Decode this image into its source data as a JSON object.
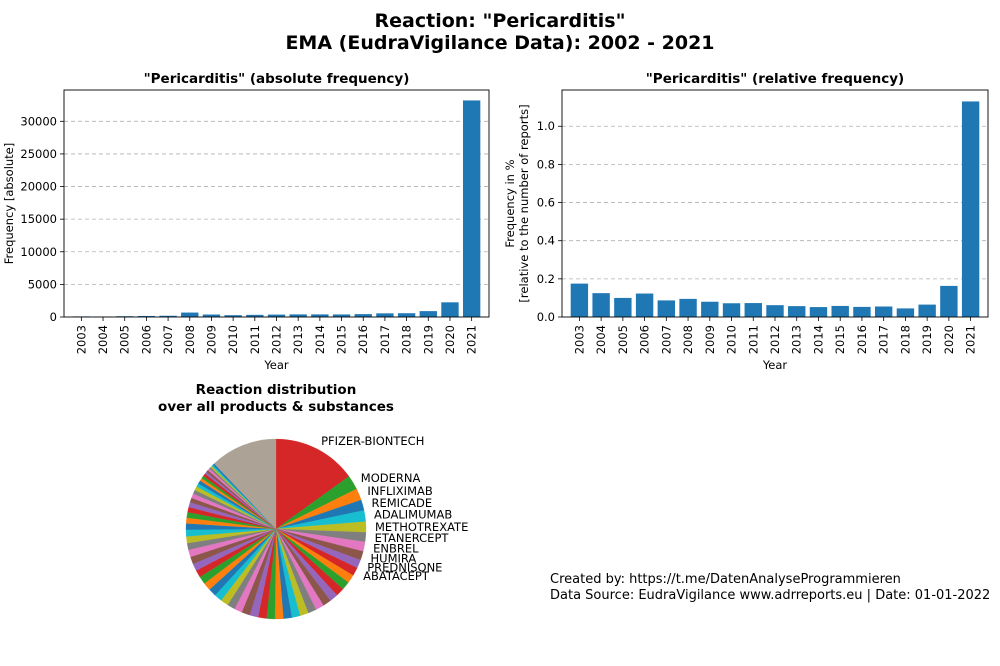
{
  "title_line1": "Reaction: \"Pericarditis\"",
  "title_line2": "EMA (EudraVigilance Data): 2002 - 2021",
  "chart_data": [
    {
      "type": "bar",
      "title": "\"Pericarditis\" (absolute frequency)",
      "xlabel": "Year",
      "ylabel": "Frequency [absolute]",
      "categories": [
        "2003",
        "2004",
        "2005",
        "2006",
        "2007",
        "2008",
        "2009",
        "2010",
        "2011",
        "2012",
        "2013",
        "2014",
        "2015",
        "2016",
        "2017",
        "2018",
        "2019",
        "2020",
        "2021"
      ],
      "values": [
        90,
        70,
        120,
        160,
        190,
        680,
        380,
        280,
        330,
        370,
        400,
        400,
        390,
        440,
        560,
        580,
        900,
        2250,
        33200
      ],
      "ylim": [
        0,
        34800
      ],
      "yticks": [
        0,
        5000,
        10000,
        15000,
        20000,
        25000,
        30000
      ],
      "color": "#1f77b4",
      "grid": "y"
    },
    {
      "type": "bar",
      "title": "\"Pericarditis\" (relative frequency)",
      "xlabel": "Year",
      "ylabel_line1": "Frequency in %",
      "ylabel_line2": "[relative to the number of reports]",
      "categories": [
        "2003",
        "2004",
        "2005",
        "2006",
        "2007",
        "2008",
        "2009",
        "2010",
        "2011",
        "2012",
        "2013",
        "2014",
        "2015",
        "2016",
        "2017",
        "2018",
        "2019",
        "2020",
        "2021"
      ],
      "values": [
        0.175,
        0.125,
        0.1,
        0.123,
        0.087,
        0.095,
        0.08,
        0.072,
        0.073,
        0.062,
        0.057,
        0.052,
        0.058,
        0.053,
        0.055,
        0.045,
        0.065,
        0.163,
        1.13
      ],
      "ylim": [
        0,
        1.19
      ],
      "yticks": [
        0.0,
        0.2,
        0.4,
        0.6,
        0.8,
        1.0
      ],
      "tick_labels": [
        "0.0",
        "0.2",
        "0.4",
        "0.6",
        "0.8",
        "1.0"
      ],
      "color": "#1f77b4",
      "grid": "y"
    },
    {
      "type": "pie",
      "title_line1": "Reaction distribution",
      "title_line2": "over all products & substances",
      "labeled_slices": [
        {
          "label": "PFIZER-BIONTECH",
          "value": 15.0,
          "color": "#d62728"
        },
        {
          "label": "MODERNA",
          "value": 2.6,
          "color": "#2ca02c"
        },
        {
          "label": "INFLIXIMAB",
          "value": 2.1,
          "color": "#ff7f0e"
        },
        {
          "label": "REMICADE",
          "value": 1.9,
          "color": "#1f77b4"
        },
        {
          "label": "ADALIMUMAB",
          "value": 2.0,
          "color": "#17becf"
        },
        {
          "label": "METHOTREXATE",
          "value": 1.9,
          "color": "#bcbd22"
        },
        {
          "label": "ETANERCEPT",
          "value": 1.7,
          "color": "#7f7f7f"
        },
        {
          "label": "ENBREL",
          "value": 1.7,
          "color": "#e377c2"
        },
        {
          "label": "HUMIRA",
          "value": 1.6,
          "color": "#8c564b"
        },
        {
          "label": "PREDNISONE",
          "value": 1.5,
          "color": "#9467bd"
        },
        {
          "label": "ABATACEPT",
          "value": 1.5,
          "color": "#d62728"
        }
      ],
      "unlabeled_slices": [
        1.5,
        1.5,
        1.5,
        1.5,
        1.5,
        1.5,
        1.5,
        1.5,
        1.5,
        1.5,
        1.5,
        1.5,
        1.5,
        1.5,
        1.5,
        1.4,
        1.4,
        1.4,
        1.4,
        1.4,
        1.4,
        1.4,
        1.3,
        1.3,
        1.3,
        1.3,
        1.2,
        1.2,
        1.2,
        1.1,
        1.0,
        1.0,
        0.9,
        0.9,
        0.8,
        0.8,
        0.7,
        0.7,
        0.6,
        0.6,
        0.5,
        0.5,
        0.5,
        0.4,
        0.4,
        0.4,
        0.3,
        0.3,
        0.3,
        0.3
      ],
      "remainder_value": 12.0,
      "remainder_color": "#aca396",
      "palette": [
        "#1f77b4",
        "#ff7f0e",
        "#2ca02c",
        "#d62728",
        "#9467bd",
        "#8c564b",
        "#e377c2",
        "#7f7f7f",
        "#bcbd22",
        "#17becf"
      ]
    }
  ],
  "credit_line1": "Created by: https://t.me/DatenAnalyseProgrammieren",
  "credit_line2": "Data Source: EudraVigilance www.adrreports.eu | Date: 01-01-2022"
}
